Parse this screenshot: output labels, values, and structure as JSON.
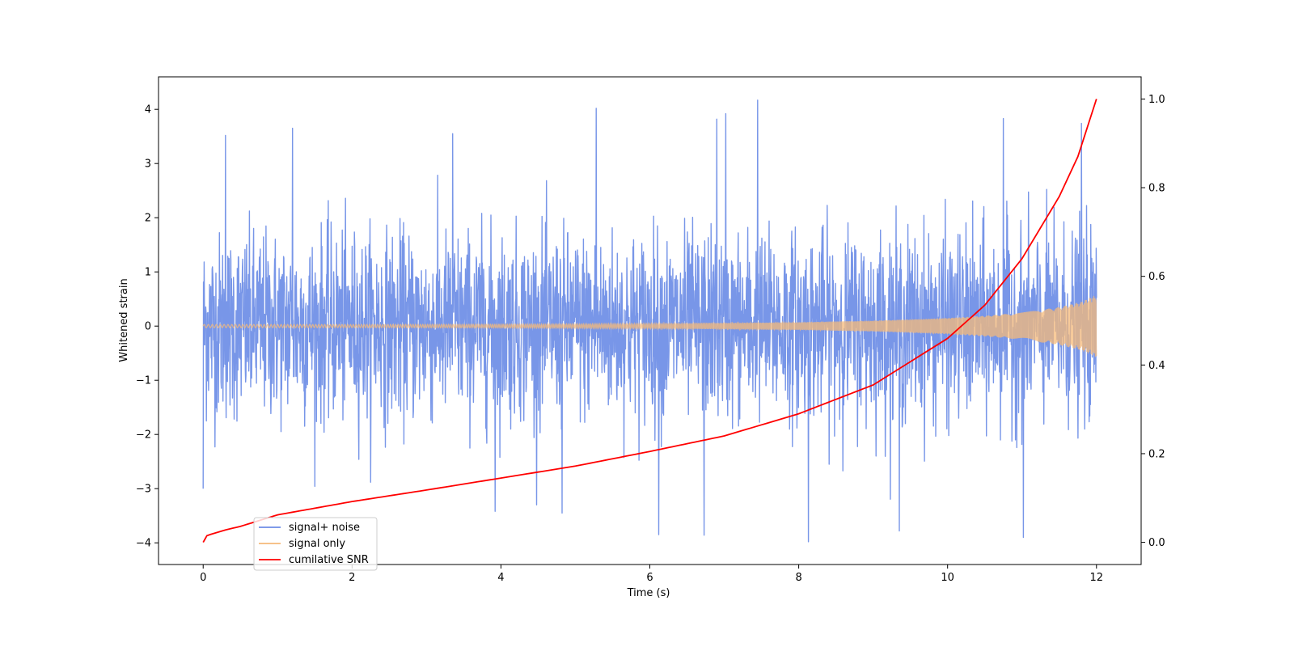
{
  "chart_data": {
    "type": "line",
    "xlabel": "Time (s)",
    "ylabel": "Whitened strain",
    "xlim": [
      -0.6,
      12.6
    ],
    "ylim": [
      -4.4,
      4.6
    ],
    "y2lim": [
      -0.05,
      1.05
    ],
    "x_ticks": [
      0,
      2,
      4,
      6,
      8,
      10,
      12
    ],
    "y_ticks": [
      -4,
      -3,
      -2,
      -1,
      0,
      1,
      2,
      3,
      4
    ],
    "y2_ticks": [
      0.0,
      0.2,
      0.4,
      0.6,
      0.8,
      1.0
    ],
    "x_tick_labels": [
      "0",
      "2",
      "4",
      "6",
      "8",
      "10",
      "12"
    ],
    "y_tick_labels": [
      "−4",
      "−3",
      "−2",
      "−1",
      "0",
      "1",
      "2",
      "3",
      "4"
    ],
    "y2_tick_labels": [
      "0.0",
      "0.2",
      "0.4",
      "0.6",
      "0.8",
      "1.0"
    ],
    "legend_position": "lower-left",
    "series": [
      {
        "name": "signal+ noise",
        "color": "#6d8de6",
        "axis": "left",
        "description_values": {
          "x_range": [
            0,
            12
          ],
          "std": 0.85,
          "max_peaks": [
            [
              5.28,
              4.02
            ],
            [
              7.45,
              4.17
            ],
            [
              6.9,
              3.82
            ],
            [
              7.02,
              3.92
            ],
            [
              10.75,
              3.83
            ],
            [
              11.8,
              3.74
            ],
            [
              1.2,
              3.65
            ],
            [
              3.35,
              3.55
            ],
            [
              0.3,
              3.52
            ]
          ],
          "min_peaks": [
            [
              8.13,
              -3.98
            ],
            [
              6.12,
              -3.85
            ],
            [
              6.73,
              -3.86
            ],
            [
              11.02,
              -3.9
            ],
            [
              9.35,
              -3.78
            ],
            [
              4.82,
              -3.45
            ],
            [
              3.92,
              -3.42
            ],
            [
              0.0,
              -3.0
            ]
          ]
        }
      },
      {
        "name": "signal only",
        "color": "#f5b97a",
        "axis": "left",
        "x": [
          0,
          2,
          4,
          6,
          8,
          9,
          10,
          10.5,
          11,
          11.5,
          11.8,
          12
        ],
        "envelope": [
          0.03,
          0.03,
          0.035,
          0.045,
          0.07,
          0.1,
          0.15,
          0.19,
          0.25,
          0.35,
          0.45,
          0.58
        ]
      },
      {
        "name": "cumilative SNR",
        "color": "#ff0000",
        "axis": "right",
        "x": [
          0,
          0.01,
          0.05,
          0.1,
          0.3,
          0.5,
          1,
          2,
          3,
          4,
          5,
          6,
          7,
          8,
          9,
          10,
          10.5,
          11,
          11.5,
          11.75,
          12
        ],
        "values": [
          0.0,
          0.01,
          0.015,
          0.018,
          0.028,
          0.036,
          0.062,
          0.092,
          0.118,
          0.145,
          0.172,
          0.205,
          0.24,
          0.29,
          0.355,
          0.46,
          0.535,
          0.64,
          0.78,
          0.87,
          1.0
        ]
      }
    ]
  }
}
